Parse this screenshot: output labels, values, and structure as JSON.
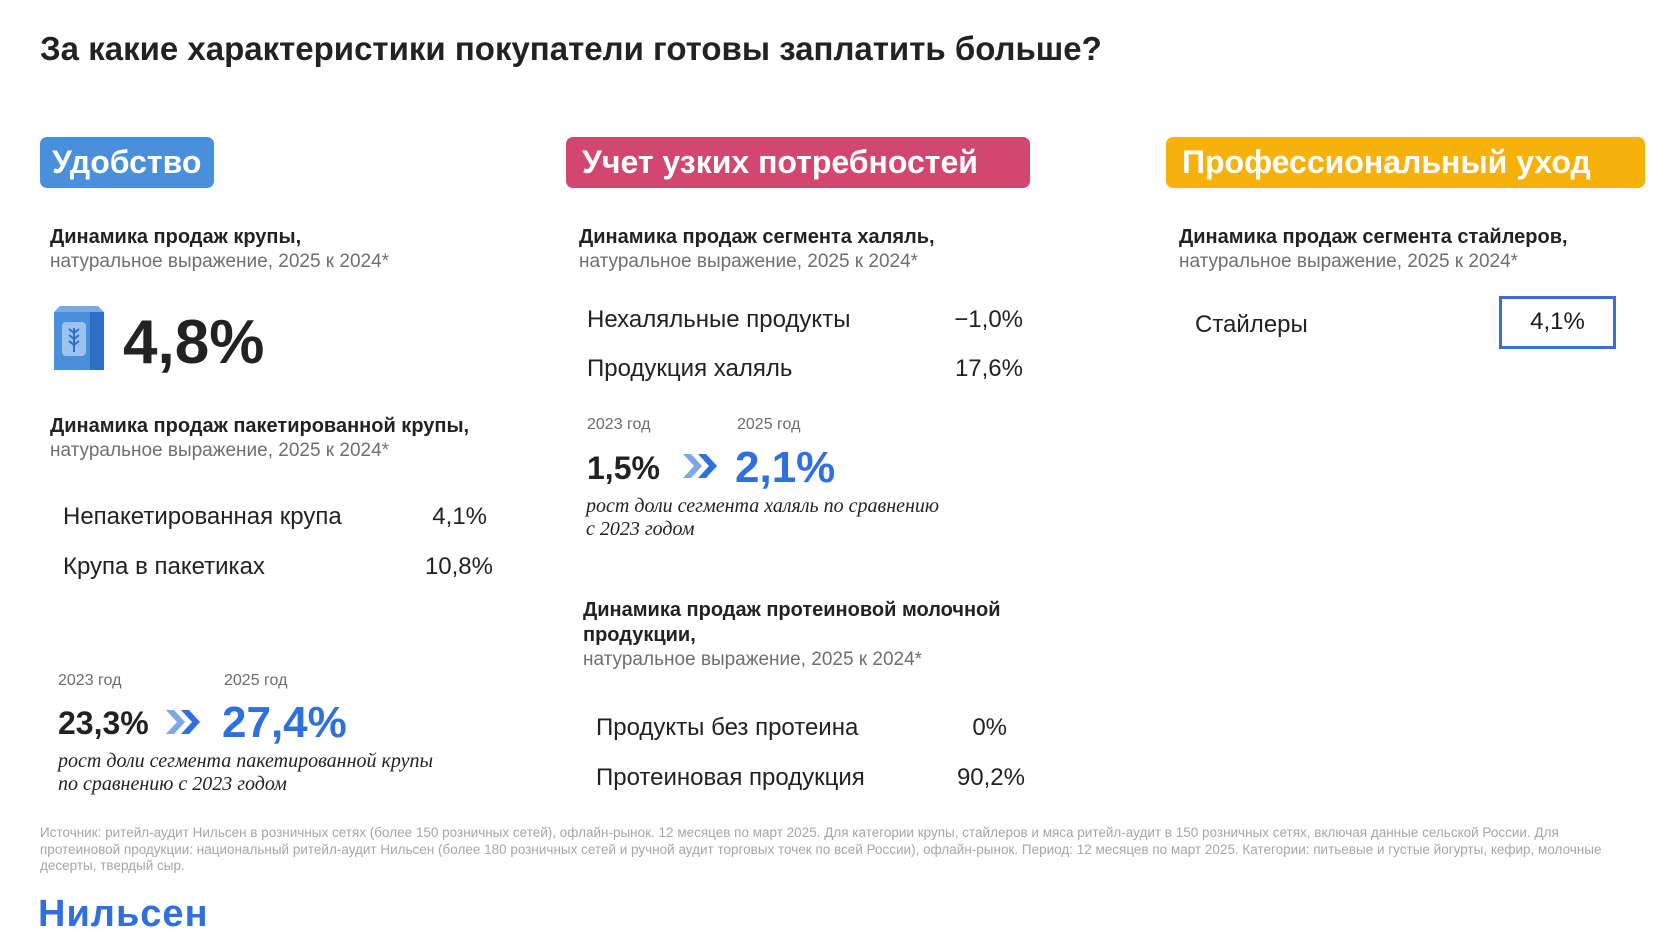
{
  "title": "За какие характеристики покупатели готовы заплатить больше?",
  "colors": {
    "convenience": "#4a8fd9",
    "needs": "#d2476f",
    "pro": "#f6b20a",
    "accent": "#2f6fde",
    "box": "#3b6ed6"
  },
  "convenience": {
    "tag": "Удобство",
    "block1": {
      "heading": "Динамика продаж крупы,",
      "subheading": "натуральное выражение, 2025 к 2024*",
      "value": "4,8%",
      "icon": "cereal-box-icon"
    },
    "block2": {
      "heading": "Динамика продаж пакетированной крупы,",
      "subheading": "натуральное выражение, 2025 к 2024*",
      "rows": [
        {
          "label": "Непакетированная крупа",
          "value": "4,1%"
        },
        {
          "label": "Крупа в пакетиках",
          "value": "10,8%"
        }
      ]
    },
    "compare": {
      "year_from": "2023 год",
      "year_to": "2025 год",
      "value_from": "23,3%",
      "value_to": "27,4%",
      "note_line1": "рост доли сегмента пакетированной крупы",
      "note_line2": "по сравнению с 2023 годом"
    }
  },
  "needs": {
    "tag": "Учет узких потребностей",
    "block1": {
      "heading": "Динамика продаж сегмента халяль,",
      "subheading": "натуральное выражение, 2025 к 2024*",
      "rows": [
        {
          "label": "Нехаляльные продукты",
          "value": "−1,0%"
        },
        {
          "label": "Продукция халяль",
          "value": "17,6%"
        }
      ]
    },
    "compare": {
      "year_from": "2023 год",
      "year_to": "2025 год",
      "value_from": "1,5%",
      "value_to": "2,1%",
      "note_line1": "рост доли сегмента халяль по сравнению",
      "note_line2": "с 2023 годом"
    },
    "block2": {
      "heading_line1": "Динамика продаж протеиновой молочной",
      "heading_line2": "продукции,",
      "subheading": "натуральное выражение, 2025 к 2024*",
      "rows": [
        {
          "label": "Продукты без протеина",
          "value": "0%"
        },
        {
          "label": "Протеиновая продукция",
          "value": "90,2%"
        }
      ]
    }
  },
  "pro": {
    "tag": "Профессиональный уход",
    "block1": {
      "heading": "Динамика продаж сегмента стайлеров,",
      "subheading": "натуральное выражение, 2025 к 2024*",
      "row": {
        "label": "Стайлеры",
        "value": "4,1%"
      }
    }
  },
  "source": "Источник: ритейл-аудит Нильсен в розничных сетях (более 150 розничных сетей), офлайн-рынок. 12 месяцев по март 2025. Для категории крупы, стайлеров и мяса ритейл-аудит в 150 розничных сетях, включая данные сельской России. Для протеиновой продукции: национальный ритейл-аудит Нильсен (более 180 розничных сетей и ручной аудит торговых точек по всей России), офлайн-рынок. Период: 12 месяцев по март 2025. Категории: питьевые и густые йогурты, кефир, молочные десерты, твердый сыр.",
  "logo": "Нильсен"
}
